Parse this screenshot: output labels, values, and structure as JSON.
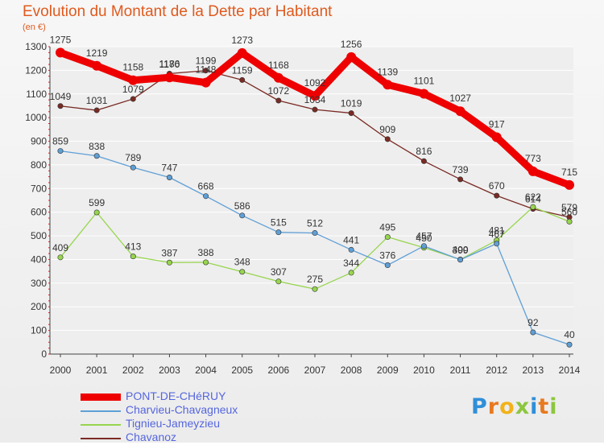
{
  "chart_data": {
    "type": "line",
    "title": "Evolution du Montant de la Dette par Habitant",
    "ylabel": "(en €)",
    "xlabel": "",
    "x": [
      "2000",
      "2001",
      "2002",
      "2003",
      "2004",
      "2005",
      "2006",
      "2007",
      "2008",
      "2009",
      "2010",
      "2011",
      "2012",
      "2013",
      "2014"
    ],
    "ylim": [
      0,
      1300
    ],
    "yticks": [
      0,
      100,
      200,
      300,
      400,
      500,
      600,
      700,
      800,
      900,
      1000,
      1100,
      1200,
      1300
    ],
    "grid": "horizontal",
    "legend_position": "bottom-left",
    "series": [
      {
        "name": "PONT-DE-CHéRUY",
        "color": "#ee0000",
        "values": [
          1275,
          1219,
          1158,
          1170,
          1148,
          1273,
          1168,
          1092,
          1256,
          1139,
          1101,
          1027,
          917,
          773,
          715
        ]
      },
      {
        "name": "Charvieu-Chavagneux",
        "color": "#5f9fd6",
        "values": [
          859,
          838,
          789,
          747,
          668,
          586,
          515,
          512,
          441,
          376,
          457,
          399,
          467,
          92,
          40
        ]
      },
      {
        "name": "Tignieu-Jameyzieu",
        "color": "#97d54e",
        "values": [
          409,
          599,
          413,
          387,
          388,
          348,
          307,
          275,
          344,
          495,
          450,
          400,
          481,
          622,
          560
        ]
      },
      {
        "name": "Chavanoz",
        "color": "#7a2a24",
        "values": [
          1049,
          1031,
          1079,
          1186,
          1199,
          1159,
          1072,
          1034,
          1019,
          909,
          816,
          739,
          670,
          614,
          579
        ]
      }
    ]
  },
  "logo": {
    "text": "Proxiti"
  }
}
